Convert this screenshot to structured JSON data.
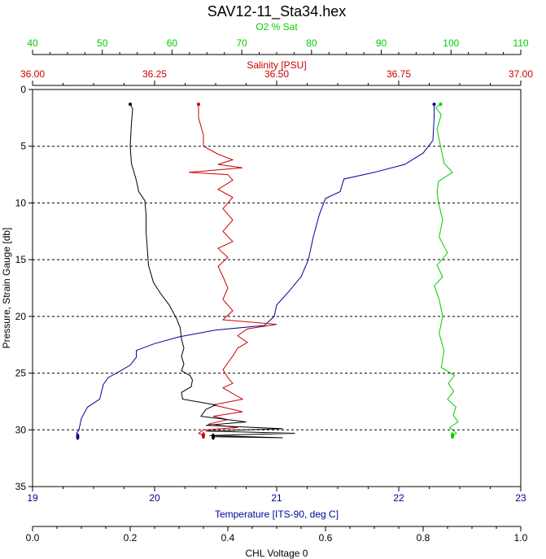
{
  "chart_data": {
    "type": "line",
    "title": "SAV12-11_Sta34.hex",
    "grid": "horizontal dashed lines at each y tick",
    "y_axis": {
      "label": "Pressure, Strain Gauge [db]",
      "range": [
        0,
        35
      ],
      "inverted": true,
      "ticks": [
        "0",
        "5",
        "10",
        "15",
        "20",
        "25",
        "30",
        "35"
      ],
      "color": "#000000"
    },
    "x_axes": [
      {
        "id": "o2",
        "label": "O2 % Sat",
        "position": "top-1",
        "range": [
          40,
          110
        ],
        "ticks": [
          "40",
          "50",
          "60",
          "70",
          "80",
          "90",
          "100",
          "110"
        ],
        "color": "#00cc00"
      },
      {
        "id": "sal",
        "label": "Salinity [PSU]",
        "position": "top-2",
        "range": [
          36.0,
          37.0
        ],
        "ticks": [
          "36.00",
          "36.25",
          "36.50",
          "36.75",
          "37.00"
        ],
        "color": "#cc0000"
      },
      {
        "id": "temp",
        "label": "Temperature [ITS-90, deg C]",
        "position": "bottom-1",
        "range": [
          19,
          23
        ],
        "ticks": [
          "19",
          "20",
          "21",
          "22",
          "23"
        ],
        "color": "#000099"
      },
      {
        "id": "chl",
        "label": "CHL Voltage 0",
        "position": "bottom-2",
        "range": [
          0.0,
          1.0
        ],
        "ticks": [
          "0.0",
          "0.2",
          "0.4",
          "0.6",
          "0.8",
          "1.0"
        ],
        "color": "#000000"
      }
    ],
    "series": [
      {
        "axis": "temp",
        "color": "#000099",
        "points": [
          [
            22.29,
            1.3
          ],
          [
            22.29,
            2.5
          ],
          [
            22.28,
            4.5
          ],
          [
            22.2,
            5.6
          ],
          [
            22.05,
            6.6
          ],
          [
            21.8,
            7.3
          ],
          [
            21.55,
            7.9
          ],
          [
            21.52,
            9.0
          ],
          [
            21.4,
            9.6
          ],
          [
            21.35,
            11.0
          ],
          [
            21.3,
            13.0
          ],
          [
            21.26,
            15.0
          ],
          [
            21.2,
            16.5
          ],
          [
            21.1,
            17.8
          ],
          [
            21.0,
            19.0
          ],
          [
            20.98,
            20.0
          ],
          [
            20.9,
            20.8
          ],
          [
            20.5,
            21.2
          ],
          [
            20.2,
            21.8
          ],
          [
            20.0,
            22.4
          ],
          [
            19.85,
            23.0
          ],
          [
            19.85,
            23.6
          ],
          [
            19.8,
            24.3
          ],
          [
            19.72,
            24.8
          ],
          [
            19.62,
            25.4
          ],
          [
            19.58,
            26.0
          ],
          [
            19.55,
            27.3
          ],
          [
            19.45,
            28.0
          ],
          [
            19.4,
            29.0
          ],
          [
            19.38,
            30.0
          ],
          [
            19.36,
            30.3
          ],
          [
            19.37,
            30.6
          ]
        ]
      },
      {
        "axis": "sal",
        "color": "#cc0000",
        "points": [
          [
            36.34,
            1.3
          ],
          [
            36.34,
            2.5
          ],
          [
            36.35,
            4.0
          ],
          [
            36.35,
            5.0
          ],
          [
            36.38,
            5.7
          ],
          [
            36.41,
            6.2
          ],
          [
            36.38,
            6.6
          ],
          [
            36.43,
            6.9
          ],
          [
            36.32,
            7.3
          ],
          [
            36.4,
            7.5
          ],
          [
            36.41,
            8.0
          ],
          [
            36.38,
            8.8
          ],
          [
            36.41,
            9.5
          ],
          [
            36.39,
            10.5
          ],
          [
            36.41,
            11.5
          ],
          [
            36.39,
            12.5
          ],
          [
            36.41,
            13.4
          ],
          [
            36.38,
            14.0
          ],
          [
            36.4,
            14.8
          ],
          [
            36.38,
            15.6
          ],
          [
            36.39,
            16.5
          ],
          [
            36.4,
            17.5
          ],
          [
            36.39,
            18.5
          ],
          [
            36.41,
            19.5
          ],
          [
            36.39,
            20.3
          ],
          [
            36.5,
            20.7
          ],
          [
            36.44,
            21.1
          ],
          [
            36.42,
            21.7
          ],
          [
            36.44,
            22.3
          ],
          [
            36.42,
            22.8
          ],
          [
            36.41,
            23.5
          ],
          [
            36.4,
            24.1
          ],
          [
            36.39,
            24.7
          ],
          [
            36.4,
            25.4
          ],
          [
            36.41,
            25.9
          ],
          [
            36.39,
            26.3
          ],
          [
            36.43,
            27.3
          ],
          [
            36.37,
            27.8
          ],
          [
            36.43,
            28.4
          ],
          [
            36.37,
            28.8
          ],
          [
            36.4,
            29.1
          ],
          [
            36.36,
            29.5
          ],
          [
            36.42,
            29.8
          ],
          [
            36.35,
            30.0
          ],
          [
            36.34,
            30.3
          ],
          [
            36.35,
            30.5
          ]
        ]
      },
      {
        "axis": "o2",
        "color": "#00cc00",
        "points": [
          [
            98.5,
            1.3
          ],
          [
            97.8,
            1.6
          ],
          [
            98.6,
            2.2
          ],
          [
            98.0,
            3.5
          ],
          [
            98.5,
            5.0
          ],
          [
            99.0,
            6.5
          ],
          [
            100.2,
            7.3
          ],
          [
            98.2,
            8.1
          ],
          [
            98.0,
            9.0
          ],
          [
            98.2,
            10.0
          ],
          [
            98.8,
            11.5
          ],
          [
            98.3,
            13.0
          ],
          [
            99.5,
            14.4
          ],
          [
            98.0,
            15.5
          ],
          [
            98.8,
            16.5
          ],
          [
            97.6,
            17.3
          ],
          [
            98.3,
            18.5
          ],
          [
            98.8,
            20.0
          ],
          [
            98.3,
            21.5
          ],
          [
            99.0,
            23.0
          ],
          [
            98.6,
            24.5
          ],
          [
            100.5,
            25.2
          ],
          [
            99.6,
            25.9
          ],
          [
            100.4,
            26.6
          ],
          [
            99.5,
            27.3
          ],
          [
            100.7,
            28.0
          ],
          [
            100.3,
            28.7
          ],
          [
            101.0,
            29.3
          ],
          [
            99.8,
            29.8
          ],
          [
            100.8,
            30.3
          ],
          [
            100.2,
            30.5
          ]
        ]
      },
      {
        "axis": "temp",
        "color": "#000000",
        "points": [
          [
            19.8,
            1.3
          ],
          [
            19.82,
            1.7
          ],
          [
            19.81,
            3.0
          ],
          [
            19.8,
            5.0
          ],
          [
            19.81,
            6.5
          ],
          [
            19.85,
            8.0
          ],
          [
            19.87,
            9.0
          ],
          [
            19.92,
            9.8
          ],
          [
            19.93,
            11.0
          ],
          [
            19.93,
            12.5
          ],
          [
            19.94,
            14.0
          ],
          [
            19.95,
            15.5
          ],
          [
            19.99,
            17.0
          ],
          [
            20.05,
            18.0
          ],
          [
            20.12,
            19.0
          ],
          [
            20.15,
            19.6
          ],
          [
            20.18,
            20.2
          ],
          [
            20.21,
            21.0
          ],
          [
            20.22,
            22.0
          ],
          [
            20.24,
            22.8
          ],
          [
            20.22,
            23.5
          ],
          [
            20.24,
            24.2
          ],
          [
            20.22,
            24.8
          ],
          [
            20.29,
            25.2
          ],
          [
            20.31,
            25.6
          ],
          [
            20.3,
            26.2
          ],
          [
            20.22,
            26.7
          ],
          [
            20.23,
            27.3
          ],
          [
            20.5,
            27.8
          ],
          [
            20.42,
            28.2
          ],
          [
            20.38,
            28.8
          ],
          [
            20.75,
            29.3
          ],
          [
            20.42,
            29.6
          ],
          [
            21.05,
            29.9
          ],
          [
            20.42,
            30.1
          ],
          [
            21.15,
            30.3
          ],
          [
            20.45,
            30.5
          ],
          [
            21.05,
            30.7
          ],
          [
            20.48,
            30.6
          ]
        ]
      }
    ]
  }
}
